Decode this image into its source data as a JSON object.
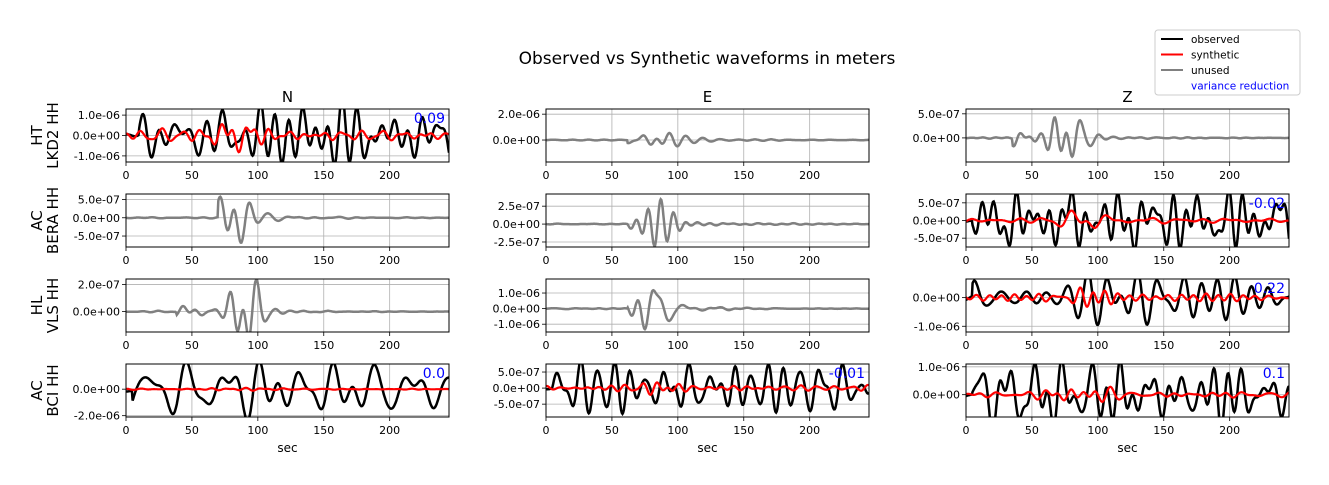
{
  "title": "Observed vs Synthetic waveforms in meters",
  "legend": {
    "placement": "top-right",
    "items": [
      {
        "label": "observed",
        "color": "#000000"
      },
      {
        "label": "synthetic",
        "color": "#ff0000"
      },
      {
        "label": "unused",
        "color": "#808080"
      },
      {
        "label": "variance reduction",
        "color": "#0000ff",
        "text_only": true
      }
    ]
  },
  "column_titles": [
    "N",
    "E",
    "Z"
  ],
  "row_labels": [
    {
      "network": "HT",
      "station": "LKD2 HH"
    },
    {
      "network": "AC",
      "station": "BERA HH"
    },
    {
      "network": "HL",
      "station": "VLS HH"
    },
    {
      "network": "AC",
      "station": "BCI HH"
    }
  ],
  "xlabel": "sec",
  "chart_data": {
    "type": "line",
    "xlim": [
      0,
      245
    ],
    "x_ticks": [
      "0",
      "50",
      "100",
      "150",
      "200"
    ],
    "grid": true,
    "panels": [
      {
        "row": 0,
        "col": 0,
        "status": "used",
        "ylim": [
          -1.3e-06,
          1.3e-06
        ],
        "y_ticks": [
          {
            "value": 1e-06,
            "label": "1.0e-06"
          },
          {
            "value": 0,
            "label": "0.0e+00"
          },
          {
            "value": -1e-06,
            "label": "-1.0e-06"
          }
        ],
        "variance_reduction": "0.09",
        "obs_amp": 1.15e-06,
        "syn_amp": 7.5e-07,
        "onset": 10,
        "seed": 1
      },
      {
        "row": 0,
        "col": 1,
        "status": "unused",
        "ylim": [
          -1.7e-06,
          2.4e-06
        ],
        "y_ticks": [
          {
            "value": 2e-06,
            "label": "2.0e-06"
          },
          {
            "value": 0,
            "label": "0.0e+00"
          }
        ],
        "obs_amp": 2.1e-06,
        "onset": 62,
        "peak": 78,
        "seed": 2
      },
      {
        "row": 0,
        "col": 2,
        "status": "unused",
        "ylim": [
          -5e-07,
          6e-07
        ],
        "y_ticks": [
          {
            "value": 5e-07,
            "label": "5.0e-07"
          },
          {
            "value": 0,
            "label": "0.0e+00"
          }
        ],
        "obs_amp": 5.8e-07,
        "onset": 35,
        "peak": 78,
        "seed": 3
      },
      {
        "row": 1,
        "col": 0,
        "status": "unused",
        "ylim": [
          -8e-07,
          6.5e-07
        ],
        "y_ticks": [
          {
            "value": 5e-07,
            "label": "5.0e-07"
          },
          {
            "value": 0,
            "label": "0.0e+00"
          },
          {
            "value": -5e-07,
            "label": "-5.0e-07"
          }
        ],
        "obs_amp": 7e-07,
        "onset": 70,
        "peak": 85,
        "seed": 4
      },
      {
        "row": 1,
        "col": 1,
        "status": "unused",
        "ylim": [
          -3.2e-07,
          4.2e-07
        ],
        "y_ticks": [
          {
            "value": 2.5e-07,
            "label": "2.5e-07"
          },
          {
            "value": 0,
            "label": "0.0e+00"
          },
          {
            "value": -2.5e-07,
            "label": "-2.5e-07"
          }
        ],
        "obs_amp": 4e-07,
        "onset": 62,
        "peak": 82,
        "seed": 5
      },
      {
        "row": 1,
        "col": 2,
        "status": "used",
        "ylim": [
          -7.5e-07,
          7.5e-07
        ],
        "y_ticks": [
          {
            "value": 5e-07,
            "label": "5.0e-07"
          },
          {
            "value": 0,
            "label": "0.0e+00"
          },
          {
            "value": -5e-07,
            "label": "-5.0e-07"
          }
        ],
        "variance_reduction": "-0.02",
        "obs_amp": 7.2e-07,
        "syn_amp": 2.2e-07,
        "onset": 5,
        "seed": 6
      },
      {
        "row": 2,
        "col": 0,
        "status": "unused",
        "ylim": [
          -1.5e-07,
          2.4e-07
        ],
        "y_ticks": [
          {
            "value": 2e-07,
            "label": "2.0e-07"
          },
          {
            "value": 0,
            "label": "0.0e+00"
          }
        ],
        "obs_amp": 2.3e-07,
        "onset": 38,
        "peak": 92,
        "seed": 7
      },
      {
        "row": 2,
        "col": 1,
        "status": "unused",
        "ylim": [
          -1.5e-06,
          1.9e-06
        ],
        "y_ticks": [
          {
            "value": 1e-06,
            "label": "1.0e-06"
          },
          {
            "value": 0,
            "label": "0.0e+00"
          },
          {
            "value": -1e-06,
            "label": "-1.0e-06"
          }
        ],
        "obs_amp": 1.85e-06,
        "onset": 62,
        "peak": 80,
        "seed": 8
      },
      {
        "row": 2,
        "col": 2,
        "status": "used",
        "ylim": [
          -1.2e-06,
          6.5e-07
        ],
        "y_ticks": [
          {
            "value": 0,
            "label": "0.0e+00"
          },
          {
            "value": -1e-06,
            "label": "-1.0e-06"
          }
        ],
        "variance_reduction": "0.22",
        "obs_amp": 6.5e-07,
        "syn_amp": 4.5e-07,
        "onset": 5,
        "seed": 9
      },
      {
        "row": 3,
        "col": 0,
        "status": "used",
        "ylim": [
          -2.1e-06,
          1.9e-06
        ],
        "y_ticks": [
          {
            "value": 0,
            "label": "0.0e+00"
          },
          {
            "value": -2e-06,
            "label": "-2.0e-06"
          }
        ],
        "variance_reduction": "0.0",
        "obs_amp": 1.8e-06,
        "syn_amp": 1.5e-07,
        "onset": 5,
        "seed": 10
      },
      {
        "row": 3,
        "col": 1,
        "status": "used",
        "ylim": [
          -9e-07,
          7.5e-07
        ],
        "y_ticks": [
          {
            "value": 5e-07,
            "label": "5.0e-07"
          },
          {
            "value": 0,
            "label": "0.0e+00"
          },
          {
            "value": -5e-07,
            "label": "-5.0e-07"
          }
        ],
        "variance_reduction": "-0.01",
        "obs_amp": 7.5e-07,
        "syn_amp": 2.5e-07,
        "onset": 5,
        "seed": 11
      },
      {
        "row": 3,
        "col": 2,
        "status": "used",
        "ylim": [
          -8e-07,
          1.1e-06
        ],
        "y_ticks": [
          {
            "value": 1e-06,
            "label": "1.0e-06"
          },
          {
            "value": 0,
            "label": "0.0e+00"
          }
        ],
        "variance_reduction": "0.1",
        "obs_amp": 1e-06,
        "syn_amp": 3e-07,
        "onset": 5,
        "seed": 12
      }
    ]
  }
}
